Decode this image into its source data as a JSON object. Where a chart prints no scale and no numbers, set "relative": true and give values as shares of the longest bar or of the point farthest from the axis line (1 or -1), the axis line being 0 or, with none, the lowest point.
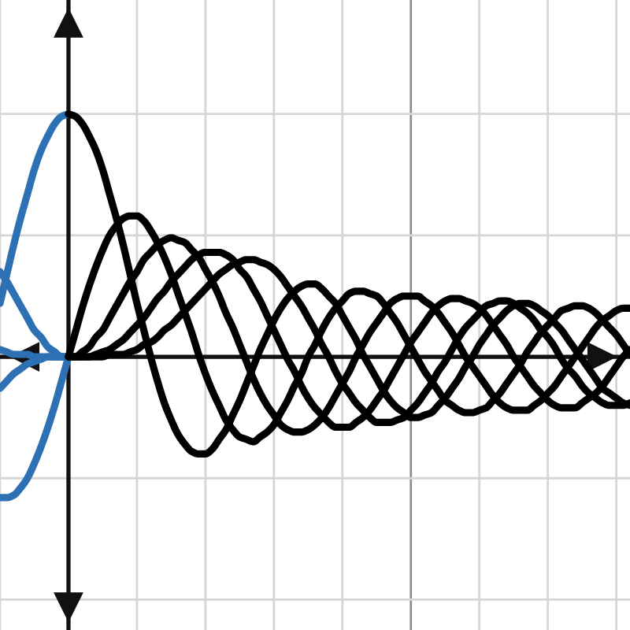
{
  "chart_data": {
    "type": "line",
    "relative": true,
    "grid": true,
    "categories": [
      null,
      null,
      null,
      null,
      null,
      null,
      null,
      null,
      null,
      null,
      null,
      null,
      null,
      null,
      null,
      null,
      null,
      null,
      null,
      null,
      null,
      null,
      null,
      null,
      null,
      null,
      null,
      null,
      null,
      null,
      null,
      null,
      null,
      null,
      null,
      null,
      null,
      null,
      null,
      null,
      null,
      null,
      null,
      null,
      null,
      null,
      null,
      null,
      null,
      null,
      null,
      null,
      null,
      null,
      null,
      null,
      null,
      null,
      null,
      null,
      null,
      null,
      null,
      null,
      null,
      null,
      null,
      null,
      null,
      null,
      null,
      null,
      null,
      null,
      null,
      null,
      null,
      null,
      null,
      null,
      null,
      null,
      null,
      null,
      null,
      null,
      null,
      null,
      null,
      null,
      null,
      null,
      null
    ],
    "series": [
      {
        "color": "#2d70b3",
        "values": [
          0.22,
          0.34,
          0.46,
          0.57,
          0.67,
          0.77,
          0.85,
          0.91,
          0.96,
          0.99,
          1.0,
          null,
          null,
          null,
          null,
          null,
          null,
          null,
          null,
          null,
          null,
          null,
          null,
          null,
          null,
          null,
          null,
          null,
          null,
          null,
          null,
          null,
          null,
          null,
          null,
          null,
          null,
          null,
          null,
          null,
          null,
          null,
          null,
          null,
          null,
          null,
          null,
          null,
          null,
          null,
          null,
          null,
          null,
          null,
          null,
          null,
          null,
          null,
          null,
          null,
          null,
          null,
          null,
          null,
          null,
          null,
          null,
          null,
          null,
          null,
          null,
          null,
          null,
          null,
          null,
          null,
          null,
          null,
          null,
          null,
          null,
          null,
          null,
          null,
          null,
          null,
          null,
          null,
          null,
          null,
          null,
          null,
          null
        ]
      },
      {
        "color": "#2d70b3",
        "values": [
          -0.58,
          -0.58,
          -0.57,
          -0.54,
          -0.5,
          -0.44,
          -0.37,
          -0.29,
          -0.2,
          -0.1,
          0,
          null,
          null,
          null,
          null,
          null,
          null,
          null,
          null,
          null,
          null,
          null,
          null,
          null,
          null,
          null,
          null,
          null,
          null,
          null,
          null,
          null,
          null,
          null,
          null,
          null,
          null,
          null,
          null,
          null,
          null,
          null,
          null,
          null,
          null,
          null,
          null,
          null,
          null,
          null,
          null,
          null,
          null,
          null,
          null,
          null,
          null,
          null,
          null,
          null,
          null,
          null,
          null,
          null,
          null,
          null,
          null,
          null,
          null,
          null,
          null,
          null,
          null,
          null,
          null,
          null,
          null,
          null,
          null,
          null,
          null,
          null,
          null,
          null,
          null,
          null,
          null,
          null,
          null,
          null,
          null,
          null,
          null
        ]
      },
      {
        "color": "#2d70b3",
        "values": [
          0.35,
          0.31,
          0.26,
          0.21,
          0.16,
          0.11,
          0.08,
          0.04,
          0.02,
          0,
          0,
          null,
          null,
          null,
          null,
          null,
          null,
          null,
          null,
          null,
          null,
          null,
          null,
          null,
          null,
          null,
          null,
          null,
          null,
          null,
          null,
          null,
          null,
          null,
          null,
          null,
          null,
          null,
          null,
          null,
          null,
          null,
          null,
          null,
          null,
          null,
          null,
          null,
          null,
          null,
          null,
          null,
          null,
          null,
          null,
          null,
          null,
          null,
          null,
          null,
          null,
          null,
          null,
          null,
          null,
          null,
          null,
          null,
          null,
          null,
          null,
          null,
          null,
          null,
          null,
          null,
          null,
          null,
          null,
          null,
          null,
          null,
          null,
          null,
          null,
          null,
          null,
          null,
          null,
          null,
          null,
          null,
          null
        ]
      },
      {
        "color": "#2d70b3",
        "values": [
          -0.13,
          -0.1,
          -0.07,
          -0.05,
          -0.03,
          -0.02,
          -0.01,
          0,
          0,
          0,
          0,
          null,
          null,
          null,
          null,
          null,
          null,
          null,
          null,
          null,
          null,
          null,
          null,
          null,
          null,
          null,
          null,
          null,
          null,
          null,
          null,
          null,
          null,
          null,
          null,
          null,
          null,
          null,
          null,
          null,
          null,
          null,
          null,
          null,
          null,
          null,
          null,
          null,
          null,
          null,
          null,
          null,
          null,
          null,
          null,
          null,
          null,
          null,
          null,
          null,
          null,
          null,
          null,
          null,
          null,
          null,
          null,
          null,
          null,
          null,
          null,
          null,
          null,
          null,
          null,
          null,
          null,
          null,
          null,
          null,
          null,
          null,
          null,
          null,
          null,
          null,
          null,
          null,
          null,
          null,
          null,
          null,
          null
        ]
      },
      {
        "color": "#2d70b3",
        "values": [
          0.03,
          0.02,
          0.01,
          0.01,
          0.01,
          0,
          0,
          0,
          0,
          0,
          0,
          null,
          null,
          null,
          null,
          null,
          null,
          null,
          null,
          null,
          null,
          null,
          null,
          null,
          null,
          null,
          null,
          null,
          null,
          null,
          null,
          null,
          null,
          null,
          null,
          null,
          null,
          null,
          null,
          null,
          null,
          null,
          null,
          null,
          null,
          null,
          null,
          null,
          null,
          null,
          null,
          null,
          null,
          null,
          null,
          null,
          null,
          null,
          null,
          null,
          null,
          null,
          null,
          null,
          null,
          null,
          null,
          null,
          null,
          null,
          null,
          null,
          null,
          null,
          null,
          null,
          null,
          null,
          null,
          null,
          null,
          null,
          null,
          null,
          null,
          null,
          null,
          null,
          null,
          null,
          null,
          null,
          null
        ]
      },
      {
        "color": "#000000",
        "values": [
          null,
          null,
          null,
          null,
          null,
          null,
          null,
          null,
          null,
          null,
          1.0,
          0.99,
          0.96,
          0.91,
          0.85,
          0.77,
          0.67,
          0.57,
          0.46,
          0.34,
          0.22,
          0.11,
          0,
          -0.1,
          -0.19,
          -0.26,
          -0.32,
          -0.36,
          -0.39,
          -0.4,
          -0.4,
          -0.38,
          -0.34,
          -0.3,
          -0.24,
          -0.18,
          -0.11,
          -0.04,
          0.03,
          0.09,
          0.15,
          0.2,
          0.24,
          0.27,
          0.29,
          0.3,
          0.3,
          0.28,
          0.25,
          0.22,
          0.17,
          0.12,
          0.07,
          0.01,
          -0.04,
          -0.09,
          -0.14,
          -0.18,
          -0.21,
          -0.23,
          -0.25,
          -0.25,
          -0.24,
          -0.23,
          -0.2,
          -0.17,
          -0.13,
          -0.09,
          -0.04,
          0,
          0.05,
          0.09,
          0.13,
          0.16,
          0.19,
          0.21,
          0.22,
          0.22,
          0.21,
          0.19,
          0.17,
          0.14,
          0.11,
          0.07,
          0.03,
          -0.01,
          -0.05,
          -0.09,
          -0.13,
          -0.15,
          -0.17,
          -0.19,
          -0.2
        ]
      },
      {
        "color": "#000000",
        "values": [
          null,
          null,
          null,
          null,
          null,
          null,
          null,
          null,
          null,
          null,
          0,
          0.1,
          0.2,
          0.29,
          0.37,
          0.44,
          0.5,
          0.54,
          0.57,
          0.58,
          0.58,
          0.56,
          0.52,
          0.47,
          0.41,
          0.34,
          0.26,
          0.18,
          0.1,
          0.01,
          -0.07,
          -0.14,
          -0.2,
          -0.26,
          -0.3,
          -0.33,
          -0.34,
          -0.35,
          -0.33,
          -0.31,
          -0.28,
          -0.23,
          -0.18,
          -0.12,
          -0.07,
          0,
          0.05,
          0.11,
          0.16,
          0.2,
          0.23,
          0.26,
          0.27,
          0.27,
          0.26,
          0.25,
          0.22,
          0.18,
          0.14,
          0.09,
          0.04,
          -0.01,
          -0.06,
          -0.1,
          -0.14,
          -0.18,
          -0.2,
          -0.22,
          -0.23,
          -0.23,
          -0.22,
          -0.21,
          -0.18,
          -0.15,
          -0.11,
          -0.07,
          -0.03,
          0.02,
          0.06,
          0.1,
          0.13,
          0.16,
          0.19,
          0.2,
          0.21,
          0.21,
          0.2,
          0.18,
          0.15,
          0.12,
          0.09,
          0.05,
          0.01
        ]
      },
      {
        "color": "#000000",
        "values": [
          null,
          null,
          null,
          null,
          null,
          null,
          null,
          null,
          null,
          null,
          0,
          0,
          0.02,
          0.04,
          0.08,
          0.11,
          0.16,
          0.21,
          0.26,
          0.31,
          0.35,
          0.4,
          0.43,
          0.46,
          0.48,
          0.49,
          0.48,
          0.47,
          0.44,
          0.41,
          0.36,
          0.31,
          0.25,
          0.18,
          0.12,
          0.05,
          -0.02,
          -0.09,
          -0.15,
          -0.2,
          -0.24,
          -0.28,
          -0.3,
          -0.31,
          -0.31,
          -0.3,
          -0.28,
          -0.25,
          -0.21,
          -0.16,
          -0.11,
          -0.06,
          0,
          0.05,
          0.1,
          0.14,
          0.18,
          0.22,
          0.24,
          0.25,
          0.25,
          0.25,
          0.23,
          0.21,
          0.18,
          0.14,
          0.1,
          0.05,
          0,
          -0.04,
          -0.08,
          -0.12,
          -0.16,
          -0.19,
          -0.21,
          -0.22,
          -0.22,
          -0.22,
          -0.2,
          -0.18,
          -0.15,
          -0.12,
          -0.08,
          -0.04,
          0,
          0.04,
          0.08,
          0.12,
          0.15,
          0.17,
          0.19,
          0.2,
          0.2
        ]
      },
      {
        "color": "#000000",
        "values": [
          null,
          null,
          null,
          null,
          null,
          null,
          null,
          null,
          null,
          null,
          0,
          0,
          0,
          0,
          0.01,
          0.02,
          0.03,
          0.05,
          0.07,
          0.1,
          0.13,
          0.16,
          0.2,
          0.24,
          0.27,
          0.31,
          0.34,
          0.37,
          0.4,
          0.42,
          0.43,
          0.43,
          0.43,
          0.42,
          0.4,
          0.36,
          0.33,
          0.28,
          0.23,
          0.17,
          0.11,
          0.05,
          -0.01,
          -0.06,
          -0.12,
          -0.17,
          -0.21,
          -0.24,
          -0.27,
          -0.29,
          -0.29,
          -0.29,
          -0.27,
          -0.25,
          -0.22,
          -0.18,
          -0.14,
          -0.09,
          -0.04,
          0.01,
          0.06,
          0.1,
          0.14,
          0.18,
          0.21,
          0.23,
          0.24,
          0.24,
          0.23,
          0.22,
          0.2,
          0.17,
          0.13,
          0.09,
          0.05,
          0,
          -0.04,
          -0.08,
          -0.12,
          -0.15,
          -0.18,
          -0.2,
          -0.21,
          -0.21,
          -0.21,
          -0.19,
          -0.17,
          -0.15,
          -0.12,
          -0.08,
          -0.04,
          0,
          0.03
        ]
      },
      {
        "color": "#000000",
        "values": [
          null,
          null,
          null,
          null,
          null,
          null,
          null,
          null,
          null,
          null,
          0,
          0,
          0,
          0,
          0,
          0,
          0.01,
          0.01,
          0.01,
          0.02,
          0.03,
          0.05,
          0.06,
          0.08,
          0.11,
          0.13,
          0.16,
          0.19,
          0.22,
          0.25,
          0.28,
          0.31,
          0.34,
          0.36,
          0.38,
          0.39,
          0.4,
          0.4,
          0.39,
          0.38,
          0.36,
          0.33,
          0.29,
          0.25,
          0.21,
          0.16,
          0.11,
          0.05,
          0,
          -0.06,
          -0.11,
          -0.15,
          -0.19,
          -0.22,
          -0.25,
          -0.27,
          -0.27,
          -0.27,
          -0.26,
          -0.25,
          -0.22,
          -0.19,
          -0.15,
          -0.11,
          -0.06,
          -0.02,
          0.03,
          0.08,
          0.12,
          0.15,
          0.18,
          0.21,
          0.22,
          0.23,
          0.23,
          0.22,
          0.2,
          0.18,
          0.15,
          0.11,
          0.08,
          0.04,
          -0.01,
          -0.05,
          -0.08,
          -0.12,
          -0.15,
          -0.17,
          -0.19,
          -0.2,
          -0.2,
          -0.2,
          -0.19
        ]
      }
    ]
  }
}
